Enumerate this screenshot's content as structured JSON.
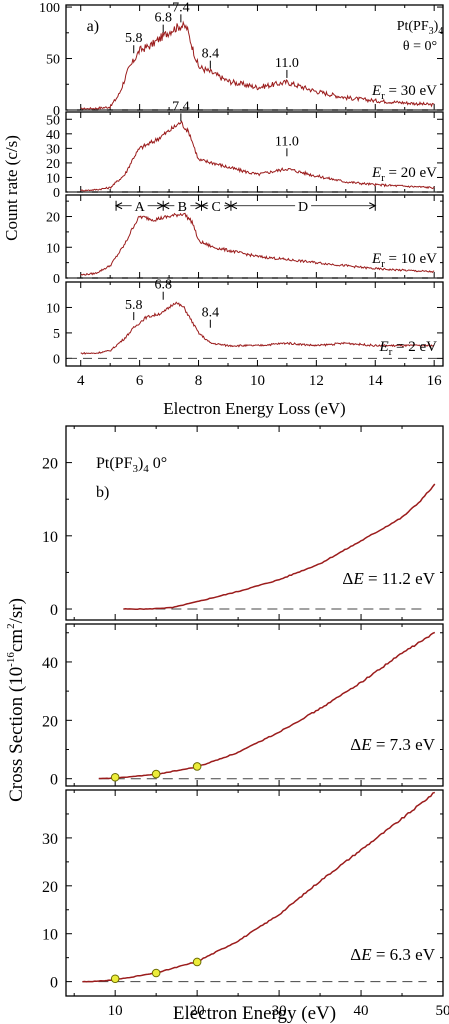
{
  "colors": {
    "curve": "#9b1c1c",
    "marker_fill": "#ecec3a",
    "marker_edge": "#6b6b00",
    "axis": "#000000",
    "baseline": "#444444"
  },
  "chart_data": [
    {
      "type": "line",
      "panel_label": "a)",
      "xlabel": "Electron Energy Loss (eV)",
      "ylabel": "Count rate (c/s)",
      "xlim": [
        3.5,
        16.3
      ],
      "x_ticks": [
        "4",
        "6",
        "8",
        "10",
        "12",
        "14",
        "16"
      ],
      "molecule": "Pt(PF3)4",
      "angle_note": "θ = 0°",
      "subplots": [
        {
          "name": "Er = 30 eV",
          "label_prefix": "E",
          "label_sub": "r",
          "label_value": "= 30 eV",
          "ylim": [
            0,
            102
          ],
          "y_ticks": [
            "0",
            "50",
            "100"
          ],
          "y_minor_ticks": [
            "25",
            "75"
          ],
          "x": [
            4.0,
            4.5,
            5.0,
            5.3,
            5.6,
            5.8,
            6.0,
            6.4,
            6.8,
            7.1,
            7.4,
            7.6,
            7.8,
            8.0,
            8.4,
            9.0,
            10.0,
            11.0,
            12.0,
            13.0,
            14.0,
            15.0,
            16.0
          ],
          "values": [
            1,
            1.5,
            3,
            15,
            38,
            48,
            58,
            63,
            72,
            78,
            82,
            80,
            60,
            42,
            37,
            28,
            22,
            27,
            18,
            12,
            9,
            7,
            5
          ],
          "peak_labels": [
            "5.8",
            "6.8",
            "7.4",
            "8.4",
            "11.0"
          ],
          "peak_positions": [
            5.8,
            6.8,
            7.4,
            8.4,
            11.0
          ],
          "peak_label_values": [
            60,
            80,
            90,
            45,
            36
          ]
        },
        {
          "name": "Er = 20 eV",
          "label_prefix": "E",
          "label_sub": "r",
          "label_value": "= 20 eV",
          "ylim": [
            0,
            55
          ],
          "y_ticks": [
            "0",
            "10",
            "20",
            "30",
            "40",
            "50"
          ],
          "y_minor_ticks": [],
          "x": [
            4.0,
            4.5,
            5.0,
            5.5,
            5.8,
            6.0,
            6.5,
            7.0,
            7.4,
            7.7,
            8.0,
            8.5,
            9.0,
            10.0,
            11.0,
            12.0,
            13.0,
            14.0,
            15.0,
            16.0
          ],
          "values": [
            1,
            1.5,
            3,
            12,
            24,
            30,
            35,
            42,
            48,
            40,
            22,
            20,
            17,
            12,
            16,
            11,
            7,
            5,
            4,
            3
          ],
          "peak_labels": [
            "7.4",
            "11.0"
          ],
          "peak_positions": [
            7.4,
            11.0
          ],
          "peak_label_values": [
            52,
            28
          ]
        },
        {
          "name": "Er = 10 eV",
          "label_prefix": "E",
          "label_sub": "r",
          "label_value": "= 10 eV",
          "ylim": [
            0,
            27
          ],
          "y_ticks": [
            "0",
            "10",
            "20"
          ],
          "y_minor_ticks": [
            "5",
            "15",
            "25"
          ],
          "x": [
            4.0,
            4.5,
            5.0,
            5.5,
            5.8,
            6.0,
            6.5,
            7.0,
            7.5,
            7.8,
            8.0,
            8.5,
            9.0,
            10.0,
            11.0,
            12.0,
            13.0,
            14.0,
            15.0,
            16.0
          ],
          "values": [
            1,
            1.5,
            4,
            11,
            17,
            20,
            19,
            20,
            21,
            18,
            12,
            10,
            9,
            7,
            6,
            5,
            4,
            3,
            2.5,
            2
          ],
          "regions": [
            "A",
            "B",
            "C",
            "D"
          ],
          "region_edges": [
            5.2,
            6.8,
            8.1,
            9.1,
            14.0
          ],
          "region_arrow_value": 23.5
        },
        {
          "name": "Er = 2 eV",
          "label_prefix": "E",
          "label_sub": "r",
          "label_value": "= 2 eV",
          "ylim": [
            -1.5,
            15
          ],
          "y_ticks": [
            "0",
            "5",
            "10"
          ],
          "y_minor_ticks": [],
          "x": [
            4.0,
            4.5,
            5.0,
            5.5,
            5.8,
            6.2,
            6.8,
            7.2,
            7.5,
            7.8,
            8.0,
            8.4,
            9.0,
            10.0,
            11.0,
            12.0,
            13.0,
            14.0,
            15.0,
            16.0
          ],
          "values": [
            1,
            1,
            1.5,
            4,
            6,
            8,
            9,
            11,
            10,
            7,
            5,
            3,
            2.5,
            2.5,
            3,
            2.5,
            3,
            2.5,
            2.5,
            2.5
          ],
          "peak_labels": [
            "5.8",
            "6.8",
            "8.4"
          ],
          "peak_positions": [
            5.8,
            6.8,
            8.4
          ],
          "peak_label_values": [
            8.5,
            12.5,
            7
          ]
        }
      ]
    },
    {
      "type": "line",
      "panel_label": "b)",
      "xlabel": "Electron Energy (eV)",
      "ylabel_main": "Cross Section (10",
      "ylabel_sup1": "-16",
      "ylabel_unit": "cm",
      "ylabel_sup2": "2",
      "ylabel_tail": "/sr)",
      "xlim": [
        4,
        50
      ],
      "x_ticks": [
        "10",
        "20",
        "30",
        "40",
        "50"
      ],
      "molecule": "Pt(PF3)4",
      "angle_note": "0°",
      "subplots": [
        {
          "name": "ΔE = 11.2 eV",
          "label_prefix": "ΔE",
          "label_value": "= 11.2 eV",
          "ylim": [
            -1.5,
            25
          ],
          "y_ticks": [
            "0",
            "10",
            "20"
          ],
          "y_minor_ticks": [
            "5",
            "15"
          ],
          "x": [
            11,
            14,
            17,
            20,
            25,
            30,
            35,
            40,
            45,
            47,
            49
          ],
          "values": [
            0,
            0,
            0.2,
            1,
            2.4,
            4.0,
            6.2,
            9.3,
            12.5,
            14.5,
            17
          ],
          "points_x": [],
          "points_y": []
        },
        {
          "name": "ΔE = 7.3 eV",
          "label_prefix": "ΔE",
          "label_value": "= 7.3 eV",
          "ylim": [
            -2.5,
            53
          ],
          "y_ticks": [
            "0",
            "20",
            "40"
          ],
          "y_minor_ticks": [
            "10",
            "30",
            "50"
          ],
          "x": [
            8,
            10,
            15,
            20,
            25,
            30,
            35,
            40,
            45,
            49
          ],
          "values": [
            0,
            0.2,
            1.5,
            4,
            9,
            16,
            24,
            33,
            43,
            50
          ],
          "points_x": [
            10,
            15,
            20
          ],
          "points_y": [
            0.5,
            1.6,
            4.2
          ]
        },
        {
          "name": "ΔE = 6.3 eV",
          "label_prefix": "ΔE",
          "label_value": "= 6.3 eV",
          "ylim": [
            -3,
            40
          ],
          "y_ticks": [
            "0",
            "10",
            "20",
            "30"
          ],
          "y_minor_ticks": [
            "5",
            "15",
            "25",
            "35"
          ],
          "x": [
            6,
            8,
            10,
            15,
            20,
            25,
            30,
            35,
            40,
            45,
            49
          ],
          "values": [
            0,
            0.1,
            0.4,
            1.8,
            4.2,
            8.5,
            14,
            21,
            27.5,
            34,
            39.5
          ],
          "points_x": [
            10,
            15,
            20
          ],
          "points_y": [
            0.6,
            1.8,
            4.1
          ]
        }
      ]
    }
  ]
}
